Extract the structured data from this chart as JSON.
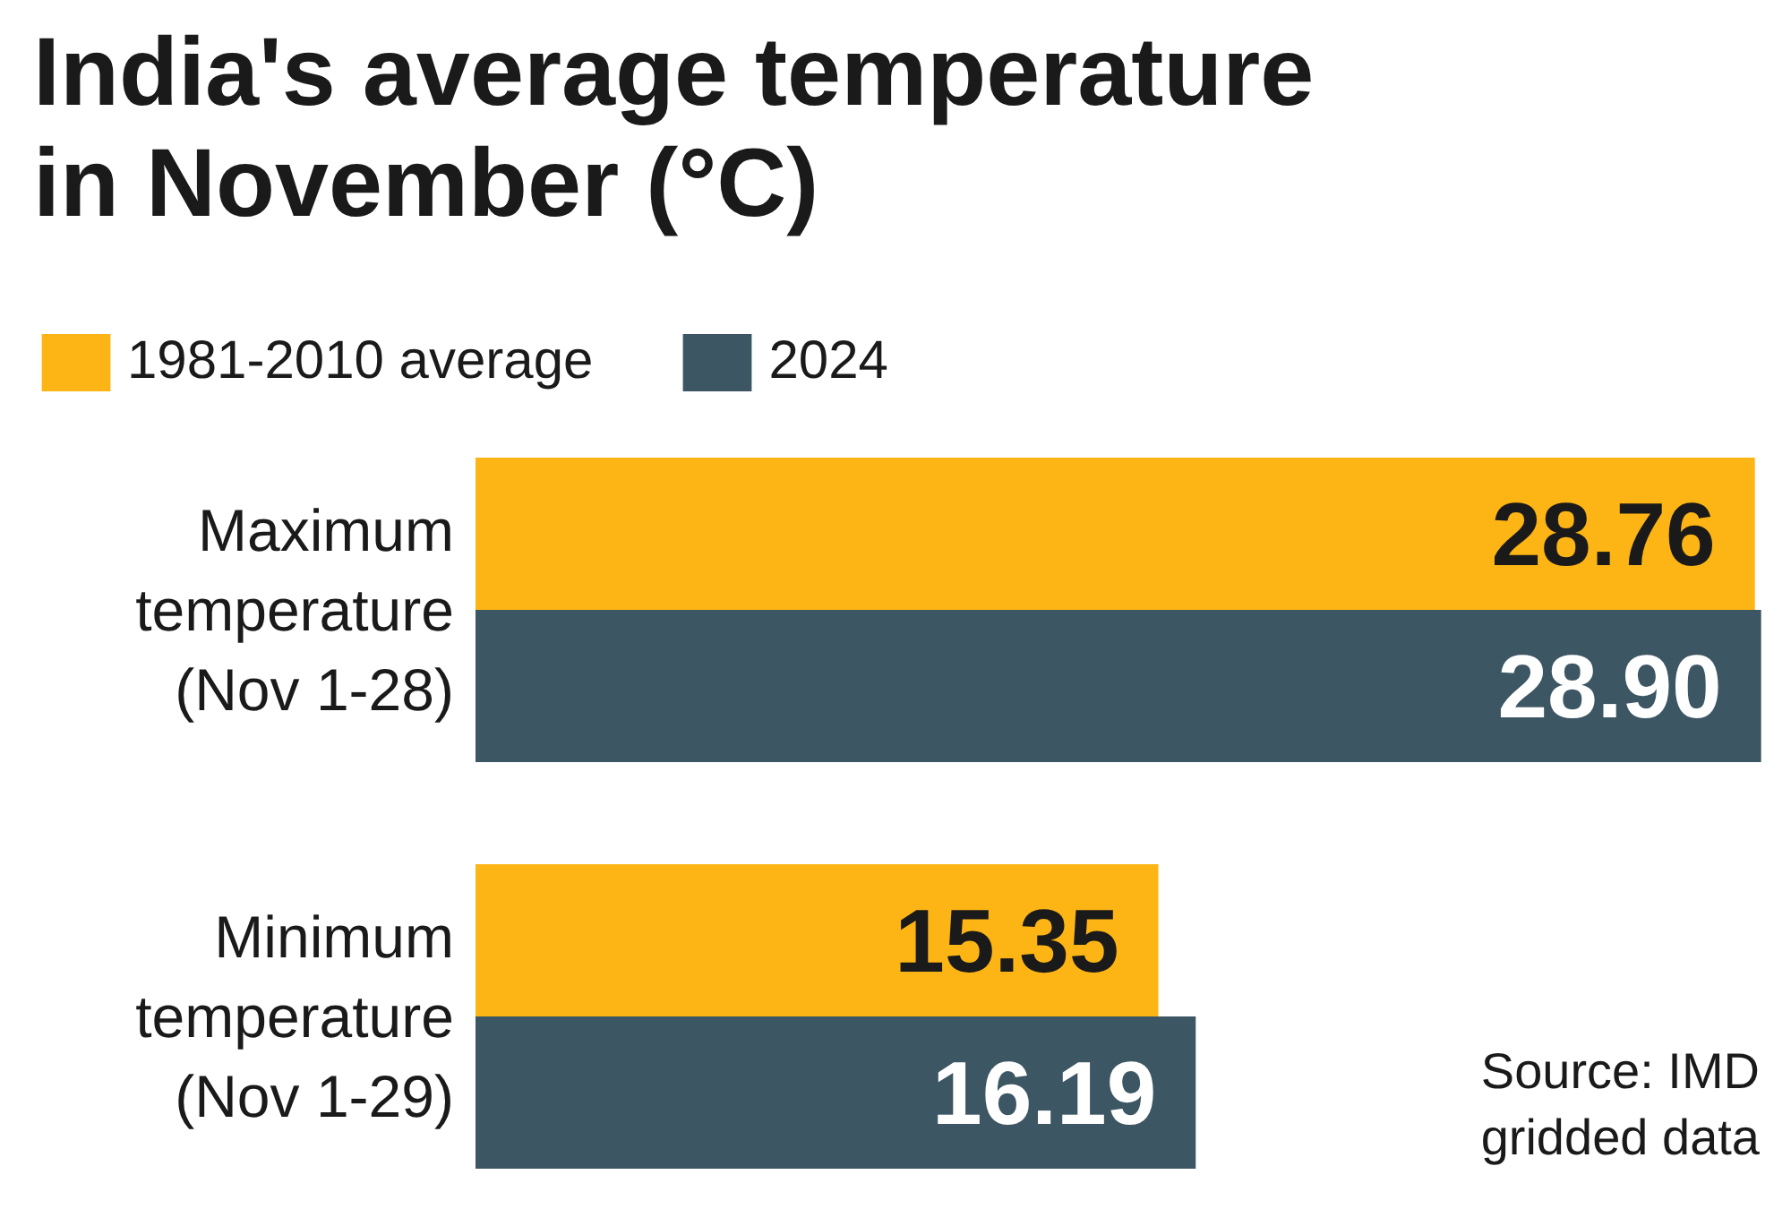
{
  "chart_data": {
    "type": "bar",
    "orientation": "horizontal",
    "title": "India's average temperature in November (°C)",
    "categories": [
      "Maximum temperature (Nov 1-28)",
      "Minimum temperature (Nov 1-29)"
    ],
    "series": [
      {
        "name": "1981-2010 average",
        "color": "#fdb515",
        "values": [
          28.76,
          15.35
        ],
        "value_labels": [
          "28.76",
          "15.35"
        ]
      },
      {
        "name": "2024",
        "color": "#3d5663",
        "values": [
          28.9,
          16.19
        ],
        "value_labels": [
          "28.90",
          "16.19"
        ]
      }
    ],
    "tick_labels": "y",
    "legend": "top left",
    "annotations": [
      "Source: IMD gridded data"
    ]
  }
}
